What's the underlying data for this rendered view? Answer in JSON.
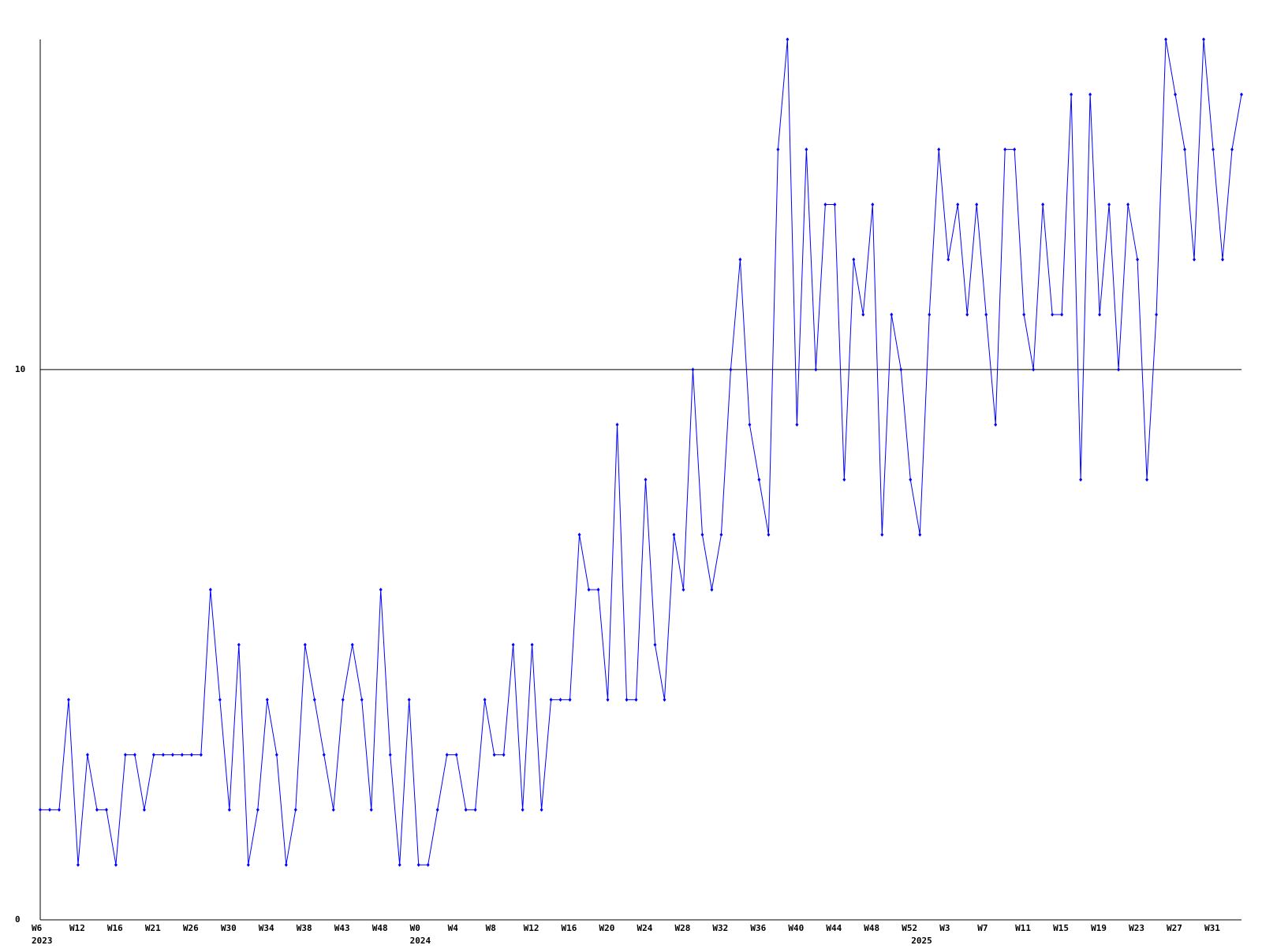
{
  "chart_data": {
    "type": "line",
    "color": "#0000ff",
    "categories": [
      "W6",
      null,
      null,
      null,
      "W12",
      null,
      null,
      null,
      "W16",
      null,
      null,
      null,
      "W21",
      null,
      null,
      null,
      "W26",
      null,
      null,
      null,
      "W30",
      null,
      null,
      null,
      "W34",
      null,
      null,
      null,
      "W38",
      null,
      null,
      null,
      "W43",
      null,
      null,
      null,
      "W48",
      null,
      null,
      null,
      "W0",
      null,
      null,
      null,
      "W4",
      null,
      null,
      null,
      "W8",
      null,
      null,
      null,
      "W12",
      null,
      null,
      null,
      "W16",
      null,
      null,
      null,
      "W20",
      null,
      null,
      null,
      "W24",
      null,
      null,
      null,
      "W28",
      null,
      null,
      null,
      "W32",
      null,
      null,
      null,
      "W36",
      null,
      null,
      null,
      "W40",
      null,
      null,
      null,
      "W44",
      null,
      null,
      null,
      "W48",
      null,
      null,
      null,
      "W52",
      null,
      null,
      null,
      "W3",
      null,
      null,
      null,
      "W7",
      null,
      null,
      null,
      "W11",
      null,
      null,
      null,
      "W15",
      null,
      null,
      null,
      "W19",
      null,
      null,
      null,
      "W23",
      null,
      null,
      null,
      "W27",
      null,
      null,
      null,
      "W31",
      null,
      null,
      null
    ],
    "years": [
      "2023",
      null,
      null,
      null,
      null,
      null,
      null,
      null,
      null,
      null,
      null,
      null,
      null,
      null,
      null,
      null,
      null,
      null,
      null,
      null,
      null,
      null,
      null,
      null,
      null,
      null,
      null,
      null,
      null,
      null,
      null,
      null,
      null,
      null,
      null,
      null,
      null,
      null,
      null,
      null,
      "2024",
      null,
      null,
      null,
      null,
      null,
      null,
      null,
      null,
      null,
      null,
      null,
      null,
      null,
      null,
      null,
      null,
      null,
      null,
      null,
      null,
      null,
      null,
      null,
      null,
      null,
      null,
      null,
      null,
      null,
      null,
      null,
      null,
      null,
      null,
      null,
      null,
      null,
      null,
      null,
      null,
      null,
      null,
      null,
      null,
      null,
      null,
      null,
      null,
      null,
      null,
      null,
      null,
      "2025",
      null,
      null,
      null,
      null,
      null,
      null,
      null,
      null,
      null,
      null,
      null,
      null,
      null,
      null,
      null,
      null,
      null,
      null,
      null,
      null,
      null,
      null,
      null,
      null,
      null,
      null,
      null,
      null,
      null,
      null,
      null,
      null,
      null,
      null
    ],
    "values": [
      2,
      2,
      2,
      4,
      1,
      3,
      2,
      2,
      1,
      3,
      3,
      2,
      3,
      3,
      3,
      3,
      3,
      3,
      6,
      4,
      2,
      5,
      1,
      2,
      4,
      3,
      1,
      2,
      5,
      4,
      3,
      2,
      4,
      5,
      4,
      2,
      6,
      3,
      1,
      4,
      1,
      1,
      2,
      3,
      3,
      2,
      2,
      4,
      3,
      3,
      5,
      2,
      5,
      2,
      4,
      4,
      4,
      7,
      6,
      6,
      4,
      9,
      4,
      4,
      8,
      5,
      4,
      7,
      6,
      10,
      7,
      6,
      7,
      10,
      12,
      9,
      8,
      7,
      14,
      16,
      9,
      14,
      10,
      13,
      13,
      8,
      12,
      11,
      13,
      7,
      11,
      10,
      8,
      7,
      11,
      14,
      12,
      13,
      11,
      13,
      11,
      9,
      14,
      14,
      11,
      10,
      13,
      11,
      11,
      15,
      8,
      15,
      11,
      13,
      10,
      13,
      12,
      8,
      11,
      16,
      15,
      14,
      12,
      16,
      14,
      12,
      14,
      15
    ],
    "ylim": [
      0,
      16
    ],
    "yticks": [
      0,
      10
    ],
    "grid": true
  }
}
